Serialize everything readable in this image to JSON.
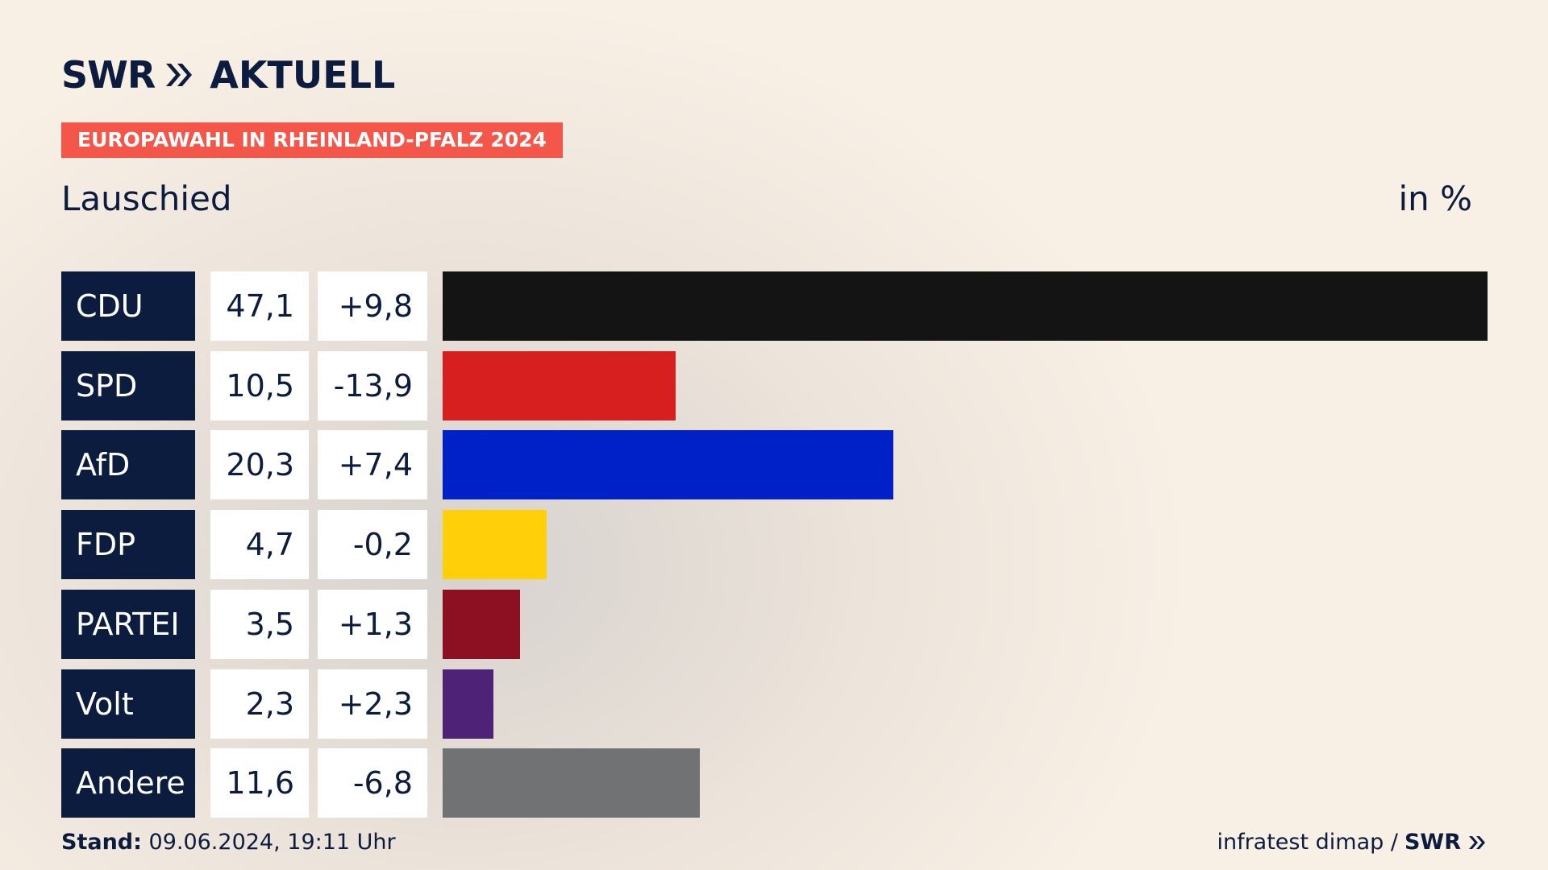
{
  "brand": {
    "logo_text": "SWR",
    "section": "AKTUELL"
  },
  "tag": "EUROPAWAHL IN RHEINLAND-PFALZ 2024",
  "region": "Lauschied",
  "unit": "in %",
  "footer": {
    "stand_label": "Stand:",
    "stand_value": "09.06.2024, 19:11 Uhr",
    "source": "infratest dimap /",
    "source_logo": "SWR"
  },
  "chart_data": {
    "type": "bar",
    "title": "Lauschied",
    "unit": "in %",
    "xlim": [
      0,
      47.1
    ],
    "categories": [
      "CDU",
      "SPD",
      "AfD",
      "FDP",
      "PARTEI",
      "Volt",
      "Andere"
    ],
    "values": [
      47.1,
      10.5,
      20.3,
      4.7,
      3.5,
      2.3,
      11.6
    ],
    "values_label": [
      "47,1",
      "10,5",
      "20,3",
      "4,7",
      "3,5",
      "2,3",
      "11,6"
    ],
    "diffs": [
      9.8,
      -13.9,
      7.4,
      -0.2,
      1.3,
      2.3,
      -6.8
    ],
    "diffs_label": [
      "+9,8",
      "-13,9",
      "+7,4",
      "-0,2",
      "+1,3",
      "+2,3",
      "-6,8"
    ],
    "colors": [
      "#141414",
      "#d81f1f",
      "#0020c8",
      "#ffcf0a",
      "#8c1022",
      "#4e2277",
      "#707274"
    ]
  }
}
